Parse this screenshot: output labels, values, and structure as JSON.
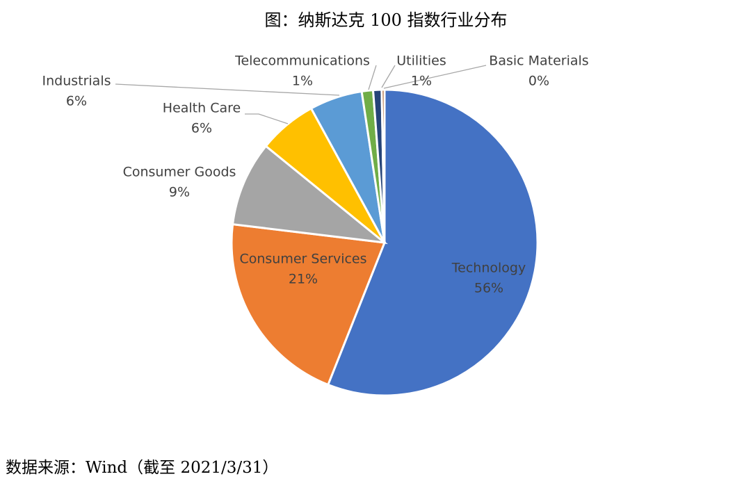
{
  "title": "图：纳斯达克 100 指数行业分布",
  "source": "数据来源：Wind（截至 2021/3/31）",
  "chart_data": {
    "type": "pie",
    "title": "图：纳斯达克 100 指数行业分布",
    "start_angle_deg": 0,
    "direction": "clockwise",
    "legend": "none",
    "slices": [
      {
        "name": "Technology",
        "value": 56.3,
        "label": "56%",
        "color": "#4472C4"
      },
      {
        "name": "Consumer Services",
        "value": 21.0,
        "label": "21%",
        "color": "#ED7D31"
      },
      {
        "name": "Consumer Goods",
        "value": 9.0,
        "label": "9%",
        "color": "#A5A5A5"
      },
      {
        "name": "Health Care",
        "value": 6.2,
        "label": "6%",
        "color": "#FFC000"
      },
      {
        "name": "Industrials",
        "value": 5.6,
        "label": "6%",
        "color": "#5B9BD5"
      },
      {
        "name": "Telecommunications",
        "value": 1.2,
        "label": "1%",
        "color": "#70AD47"
      },
      {
        "name": "Utilities",
        "value": 0.9,
        "label": "1%",
        "color": "#264478"
      },
      {
        "name": "Basic Materials",
        "value": 0.3,
        "label": "0%",
        "color": "#9E480E"
      }
    ]
  }
}
